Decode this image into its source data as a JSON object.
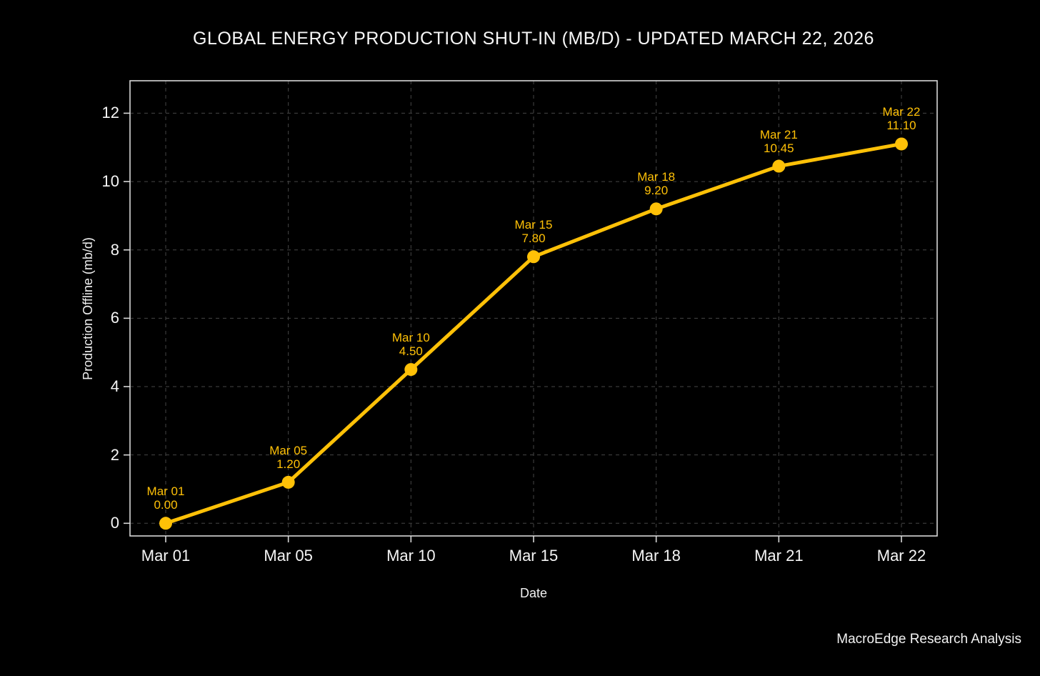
{
  "title": "GLOBAL ENERGY PRODUCTION SHUT-IN (MB/D) - UPDATED MARCH 22, 2026",
  "footer": "MacroEdge Research Analysis",
  "chart_data": {
    "type": "line",
    "title": "GLOBAL ENERGY PRODUCTION SHUT-IN (MB/D) - UPDATED MARCH 22, 2026",
    "xlabel": "Date",
    "ylabel": "Production Offline (mb/d)",
    "categories": [
      "Mar 01",
      "Mar 05",
      "Mar 10",
      "Mar 15",
      "Mar 18",
      "Mar 21",
      "Mar 22"
    ],
    "values": [
      0.0,
      1.2,
      4.5,
      7.8,
      9.2,
      10.45,
      11.1
    ],
    "point_labels": [
      "0.00",
      "1.20",
      "4.50",
      "7.80",
      "9.20",
      "10.45",
      "11.10"
    ],
    "yticks": [
      0,
      2,
      4,
      6,
      8,
      10,
      12
    ],
    "ylim": [
      -0.37,
      12.95
    ],
    "grid": "dashed",
    "legend": "none",
    "colors": {
      "line": "#ffc107",
      "marker": "#ffc107",
      "point_label": "#ffc107",
      "background": "#000000",
      "text": "#f5f5f5",
      "grid": "#464646",
      "spine": "#d8d8d8"
    }
  }
}
